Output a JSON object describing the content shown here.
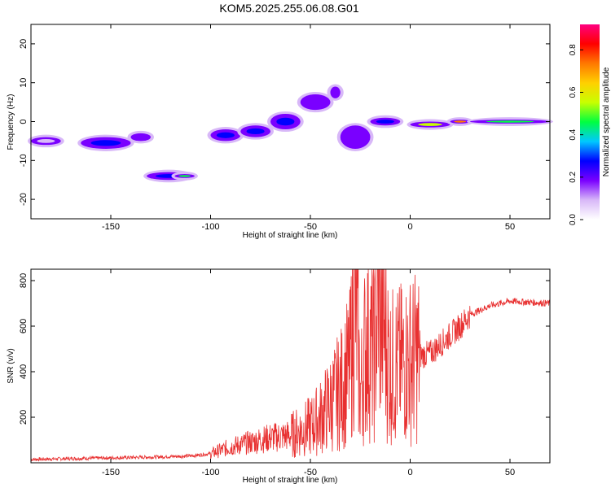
{
  "title": "KOM5.2025.255.06.08.G01",
  "chart_data": [
    {
      "type": "heatmap",
      "xlabel": "Height of straight line (km)",
      "ylabel": "Frequency (Hz)",
      "xlim": [
        -190,
        70
      ],
      "ylim": [
        -25,
        25
      ],
      "xticks": [
        -150,
        -100,
        -50,
        0,
        50
      ],
      "yticks": [
        -20,
        -10,
        0,
        10,
        20
      ],
      "colorbar": {
        "label": "Normalized spectral amplitude",
        "range": [
          0,
          0.92
        ],
        "ticks": [
          "0.0",
          "0.2",
          "0.4",
          "0.6",
          "0.8"
        ],
        "colormap": [
          "#ffffff",
          "#d8b8f8",
          "#7a00ff",
          "#0000ff",
          "#00c8ff",
          "#00ff40",
          "#c8ff00",
          "#ffd000",
          "#ff7800",
          "#ff0000",
          "#ff0080"
        ]
      },
      "blobs": [
        {
          "x": [
            -190,
            -175
          ],
          "y": [
            -6,
            -4
          ],
          "amp": 0.12
        },
        {
          "x": [
            -165,
            -140
          ],
          "y": [
            -7,
            -4
          ],
          "amp": 0.28
        },
        {
          "x": [
            -140,
            -130
          ],
          "y": [
            -5,
            -3
          ],
          "amp": 0.22
        },
        {
          "x": [
            -132,
            -110
          ],
          "y": [
            -15,
            -13
          ],
          "amp": 0.3
        },
        {
          "x": [
            -118,
            -108
          ],
          "y": [
            -14.5,
            -13.5
          ],
          "amp": 0.45
        },
        {
          "x": [
            -100,
            -85
          ],
          "y": [
            -5,
            -2
          ],
          "amp": 0.25
        },
        {
          "x": [
            -85,
            -70
          ],
          "y": [
            -4,
            -1
          ],
          "amp": 0.3
        },
        {
          "x": [
            -70,
            -55
          ],
          "y": [
            -2,
            2
          ],
          "amp": 0.25
        },
        {
          "x": [
            -55,
            -40
          ],
          "y": [
            3,
            7
          ],
          "amp": 0.22
        },
        {
          "x": [
            -40,
            -35
          ],
          "y": [
            6,
            9
          ],
          "amp": 0.2
        },
        {
          "x": [
            -35,
            -20
          ],
          "y": [
            -7,
            -1
          ],
          "amp": 0.2
        },
        {
          "x": [
            -20,
            -5
          ],
          "y": [
            -1,
            1
          ],
          "amp": 0.3
        },
        {
          "x": [
            0,
            20
          ],
          "y": [
            -1.5,
            0
          ],
          "amp": 0.55
        },
        {
          "x": [
            20,
            30
          ],
          "y": [
            -0.5,
            0.5
          ],
          "amp": 0.75
        },
        {
          "x": [
            30,
            70
          ],
          "y": [
            -0.5,
            0.5
          ],
          "amp": 0.5
        }
      ]
    },
    {
      "type": "line",
      "xlabel": "Height of straight line (km)",
      "ylabel": "SNR (v/v)",
      "xlim": [
        -190,
        70
      ],
      "ylim": [
        0,
        850
      ],
      "xticks": [
        -150,
        -100,
        -50,
        0,
        50
      ],
      "yticks": [
        200,
        400,
        600,
        800
      ],
      "color": "#e83030",
      "x": [
        -190,
        -160,
        -130,
        -110,
        -100,
        -90,
        -80,
        -70,
        -60,
        -50,
        -45,
        -40,
        -35,
        -30,
        -28,
        -25,
        -22,
        -18,
        -16,
        -10,
        -5,
        0,
        5,
        10,
        15,
        20,
        25,
        30,
        40,
        50,
        60,
        70
      ],
      "y": [
        15,
        20,
        25,
        30,
        40,
        70,
        90,
        110,
        120,
        160,
        200,
        260,
        320,
        420,
        830,
        300,
        550,
        480,
        760,
        420,
        430,
        450,
        470,
        480,
        520,
        560,
        600,
        650,
        690,
        710,
        705,
        700
      ]
    }
  ]
}
